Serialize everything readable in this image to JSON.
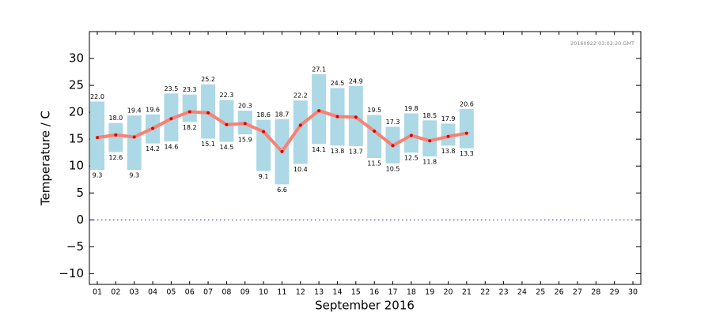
{
  "chart_data": {
    "type": "range_bar",
    "timestamp": "20160922 03:02:20 GMT",
    "xlabel": "September 2016",
    "ylabel": "Temperature / C",
    "categories": [
      "01",
      "02",
      "03",
      "04",
      "05",
      "06",
      "07",
      "08",
      "09",
      "10",
      "11",
      "12",
      "13",
      "14",
      "15",
      "16",
      "17",
      "18",
      "19",
      "20",
      "21",
      "22",
      "23",
      "24",
      "25",
      "26",
      "27",
      "28",
      "29",
      "30"
    ],
    "bar_top": {
      "color": "#add8e6",
      "values": [
        22.0,
        18.0,
        19.4,
        19.6,
        23.5,
        23.3,
        25.2,
        22.3,
        20.3,
        18.6,
        18.7,
        22.2,
        27.1,
        24.5,
        24.9,
        19.5,
        17.3,
        19.8,
        18.5,
        17.9,
        20.6,
        null,
        null,
        null,
        null,
        null,
        null,
        null,
        null,
        null
      ],
      "value_labels": [
        "22.0",
        "18.0",
        "19.4",
        "19.6",
        "23.5",
        "23.3",
        "25.2",
        "22.3",
        "20.3",
        "18.6",
        "18.7",
        "22.2",
        "27.1",
        "24.5",
        "24.9",
        "19.5",
        "17.3",
        "19.8",
        "18.5",
        "17.9",
        "20.6",
        null,
        null,
        null,
        null,
        null,
        null,
        null,
        null,
        null
      ]
    },
    "bar_bottom": {
      "values": [
        9.3,
        12.6,
        9.3,
        14.2,
        14.6,
        18.2,
        15.1,
        14.5,
        15.9,
        9.1,
        6.6,
        10.4,
        14.1,
        13.8,
        13.7,
        11.5,
        10.5,
        12.5,
        11.8,
        13.8,
        13.3,
        null,
        null,
        null,
        null,
        null,
        null,
        null,
        null,
        null
      ],
      "value_labels": [
        "9.3",
        "12.6",
        "9.3",
        "14.2",
        "14.6",
        "18.2",
        "15.1",
        "14.5",
        "15.9",
        "9.1",
        "6.6",
        "10.4",
        "14.1",
        "13.8",
        "13.7",
        "11.5",
        "10.5",
        "12.5",
        "11.8",
        "13.8",
        "13.3",
        null,
        null,
        null,
        null,
        null,
        null,
        null,
        null,
        null
      ]
    },
    "line": {
      "color": "#fa8072",
      "marker_color": "#dd0000",
      "values": [
        15.3,
        15.8,
        15.4,
        17.0,
        18.8,
        20.1,
        19.9,
        17.7,
        17.9,
        16.4,
        12.7,
        17.6,
        20.3,
        19.2,
        19.1,
        16.5,
        13.8,
        15.7,
        14.7,
        15.5,
        16.1,
        null,
        null,
        null,
        null,
        null,
        null,
        null,
        null,
        null
      ]
    },
    "zero_line": {
      "value": 0,
      "color": "#3333cc"
    },
    "ylim": [
      -12,
      35
    ],
    "yticks": [
      {
        "value": -10,
        "label": "−10"
      },
      {
        "value": -5,
        "label": "−5"
      },
      0,
      5,
      10,
      15,
      20,
      25,
      30
    ]
  }
}
